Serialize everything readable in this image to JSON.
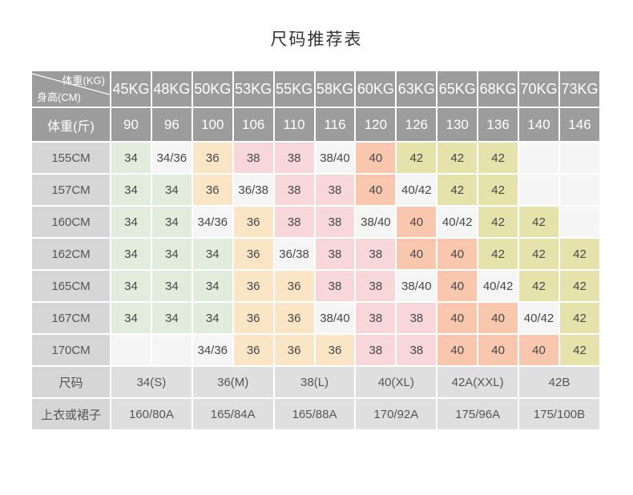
{
  "page": {
    "title": "尺码推荐表"
  },
  "palette": {
    "header_bg": "#9c9c9c",
    "label_bg": "#d6d6d6",
    "footer_bg": "#dfdfdf",
    "cell_green": "#e1ecdd",
    "cell_white": "#f5f5f5",
    "cell_peach": "#fae6c6",
    "cell_pink": "#f8d7db",
    "cell_salmon": "#f9c7ae",
    "cell_khaki": "#e6e2ab",
    "cell_empty": "#f5f5f5",
    "cell_text": "#474747",
    "title_text": "#333333"
  },
  "table": {
    "corner": {
      "top_right": "体重(KG)",
      "bottom_left": "身高(CM)"
    },
    "weight_kg_header": [
      "45KG",
      "48KG",
      "50KG",
      "53KG",
      "55KG",
      "58KG",
      "60KG",
      "63KG",
      "65KG",
      "68KG",
      "70KG",
      "73KG"
    ],
    "weight_jin_label": "体重(斤)",
    "weight_jin_values": [
      "90",
      "96",
      "100",
      "106",
      "110",
      "116",
      "120",
      "126",
      "130",
      "136",
      "140",
      "146"
    ],
    "rows": [
      {
        "label": "155CM",
        "cells": [
          {
            "v": "34",
            "c": "green"
          },
          {
            "v": "34/36",
            "c": "white"
          },
          {
            "v": "36",
            "c": "peach"
          },
          {
            "v": "38",
            "c": "pink"
          },
          {
            "v": "38",
            "c": "pink"
          },
          {
            "v": "38/40",
            "c": "white"
          },
          {
            "v": "40",
            "c": "salmon"
          },
          {
            "v": "42",
            "c": "khaki"
          },
          {
            "v": "42",
            "c": "khaki"
          },
          {
            "v": "42",
            "c": "khaki"
          },
          {
            "v": "",
            "c": "empty"
          },
          {
            "v": "",
            "c": "empty"
          }
        ]
      },
      {
        "label": "157CM",
        "cells": [
          {
            "v": "34",
            "c": "green"
          },
          {
            "v": "34",
            "c": "green"
          },
          {
            "v": "36",
            "c": "peach"
          },
          {
            "v": "36/38",
            "c": "white"
          },
          {
            "v": "38",
            "c": "pink"
          },
          {
            "v": "38",
            "c": "pink"
          },
          {
            "v": "40",
            "c": "salmon"
          },
          {
            "v": "40/42",
            "c": "white"
          },
          {
            "v": "42",
            "c": "khaki"
          },
          {
            "v": "42",
            "c": "khaki"
          },
          {
            "v": "",
            "c": "empty"
          },
          {
            "v": "",
            "c": "empty"
          }
        ]
      },
      {
        "label": "160CM",
        "cells": [
          {
            "v": "34",
            "c": "green"
          },
          {
            "v": "34",
            "c": "green"
          },
          {
            "v": "34/36",
            "c": "white"
          },
          {
            "v": "36",
            "c": "peach"
          },
          {
            "v": "38",
            "c": "pink"
          },
          {
            "v": "38",
            "c": "pink"
          },
          {
            "v": "38/40",
            "c": "white"
          },
          {
            "v": "40",
            "c": "salmon"
          },
          {
            "v": "40/42",
            "c": "white"
          },
          {
            "v": "42",
            "c": "khaki"
          },
          {
            "v": "42",
            "c": "khaki"
          },
          {
            "v": "",
            "c": "empty"
          }
        ]
      },
      {
        "label": "162CM",
        "cells": [
          {
            "v": "34",
            "c": "green"
          },
          {
            "v": "34",
            "c": "green"
          },
          {
            "v": "34",
            "c": "green"
          },
          {
            "v": "36",
            "c": "peach"
          },
          {
            "v": "36/38",
            "c": "white"
          },
          {
            "v": "38",
            "c": "pink"
          },
          {
            "v": "38",
            "c": "pink"
          },
          {
            "v": "40",
            "c": "salmon"
          },
          {
            "v": "40",
            "c": "salmon"
          },
          {
            "v": "42",
            "c": "khaki"
          },
          {
            "v": "42",
            "c": "khaki"
          },
          {
            "v": "42",
            "c": "khaki"
          }
        ]
      },
      {
        "label": "165CM",
        "cells": [
          {
            "v": "34",
            "c": "green"
          },
          {
            "v": "34",
            "c": "green"
          },
          {
            "v": "34",
            "c": "green"
          },
          {
            "v": "36",
            "c": "peach"
          },
          {
            "v": "36",
            "c": "peach"
          },
          {
            "v": "38",
            "c": "pink"
          },
          {
            "v": "38",
            "c": "pink"
          },
          {
            "v": "38/40",
            "c": "white"
          },
          {
            "v": "40",
            "c": "salmon"
          },
          {
            "v": "40/42",
            "c": "white"
          },
          {
            "v": "42",
            "c": "khaki"
          },
          {
            "v": "42",
            "c": "khaki"
          }
        ]
      },
      {
        "label": "167CM",
        "cells": [
          {
            "v": "34",
            "c": "green"
          },
          {
            "v": "34",
            "c": "green"
          },
          {
            "v": "34",
            "c": "green"
          },
          {
            "v": "36",
            "c": "peach"
          },
          {
            "v": "36",
            "c": "peach"
          },
          {
            "v": "38/40",
            "c": "white"
          },
          {
            "v": "38",
            "c": "pink"
          },
          {
            "v": "38",
            "c": "pink"
          },
          {
            "v": "40",
            "c": "salmon"
          },
          {
            "v": "40",
            "c": "salmon"
          },
          {
            "v": "40/42",
            "c": "white"
          },
          {
            "v": "42",
            "c": "khaki"
          }
        ]
      },
      {
        "label": "170CM",
        "cells": [
          {
            "v": "",
            "c": "empty"
          },
          {
            "v": "",
            "c": "empty"
          },
          {
            "v": "34/36",
            "c": "white"
          },
          {
            "v": "36",
            "c": "peach"
          },
          {
            "v": "36",
            "c": "peach"
          },
          {
            "v": "36",
            "c": "peach"
          },
          {
            "v": "38",
            "c": "pink"
          },
          {
            "v": "38",
            "c": "pink"
          },
          {
            "v": "40",
            "c": "salmon"
          },
          {
            "v": "40",
            "c": "salmon"
          },
          {
            "v": "40",
            "c": "salmon"
          },
          {
            "v": "42",
            "c": "khaki"
          }
        ]
      }
    ],
    "size_row": {
      "label": "尺码",
      "values": [
        "34(S)",
        "36(M)",
        "38(L)",
        "40(XL)",
        "42A(XXL)",
        "42B"
      ]
    },
    "garment_row": {
      "label": "上衣或裙子",
      "values": [
        "160/80A",
        "165/84A",
        "165/88A",
        "170/92A",
        "175/96A",
        "175/100B"
      ]
    }
  }
}
